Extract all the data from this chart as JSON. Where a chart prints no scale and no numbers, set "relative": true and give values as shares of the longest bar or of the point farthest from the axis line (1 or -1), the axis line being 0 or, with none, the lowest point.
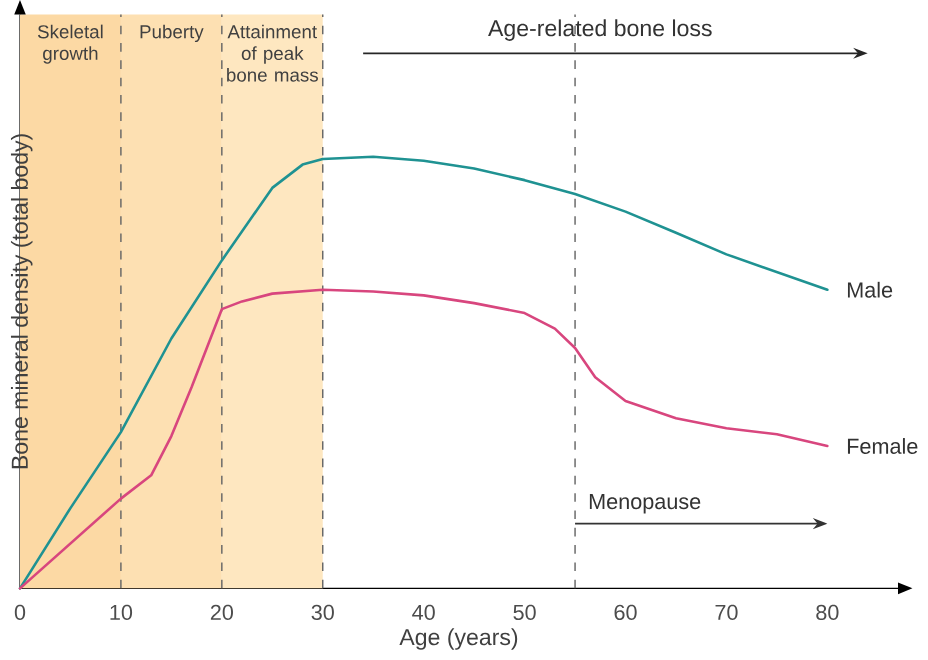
{
  "chart_data": {
    "type": "line",
    "relative": true,
    "xlabel": "Age (years)",
    "ylabel": "Bone mineral density (total body)",
    "xlim": [
      0,
      87
    ],
    "xticks": [
      0,
      10,
      20,
      30,
      40,
      50,
      60,
      70,
      80
    ],
    "marker": "none",
    "line_style": "solid",
    "series": [
      {
        "name": "Male",
        "color": "#1f9292",
        "x": [
          0,
          5,
          10,
          15,
          20,
          25,
          28,
          30,
          35,
          40,
          45,
          50,
          55,
          60,
          65,
          70,
          75,
          80
        ],
        "values": [
          0,
          0.186,
          0.362,
          0.579,
          0.76,
          0.928,
          0.982,
          0.995,
          1.0,
          0.991,
          0.973,
          0.946,
          0.914,
          0.873,
          0.824,
          0.774,
          0.733,
          0.692
        ]
      },
      {
        "name": "Female",
        "color": "#d8467e",
        "x": [
          0,
          5,
          10,
          13,
          15,
          17,
          20,
          22,
          25,
          30,
          35,
          40,
          45,
          50,
          53,
          55,
          57,
          60,
          65,
          70,
          75,
          80
        ],
        "values": [
          0,
          0.104,
          0.208,
          0.262,
          0.353,
          0.466,
          0.647,
          0.665,
          0.683,
          0.692,
          0.688,
          0.679,
          0.661,
          0.638,
          0.602,
          0.557,
          0.489,
          0.434,
          0.394,
          0.371,
          0.357,
          0.33
        ]
      }
    ],
    "bands": [
      {
        "axis": "x",
        "from": 0,
        "to": 10,
        "label": "Skeletal growth",
        "color": "#fcd9a4"
      },
      {
        "axis": "x",
        "from": 10,
        "to": 20,
        "label": "Puberty",
        "color": "#fde0b2"
      },
      {
        "axis": "x",
        "from": 20,
        "to": 30,
        "label": "Attainment of peak bone mass",
        "color": "#fee7c0"
      }
    ],
    "ref_lines": [
      {
        "axis": "x",
        "value": 10,
        "line_style": "dashed"
      },
      {
        "axis": "x",
        "value": 20,
        "line_style": "dashed"
      },
      {
        "axis": "x",
        "value": 30,
        "line_style": "dashed"
      },
      {
        "axis": "x",
        "value": 55,
        "line_style": "dashed",
        "label": "Menopause"
      }
    ],
    "annotations": [
      "Age-related bone loss"
    ]
  }
}
